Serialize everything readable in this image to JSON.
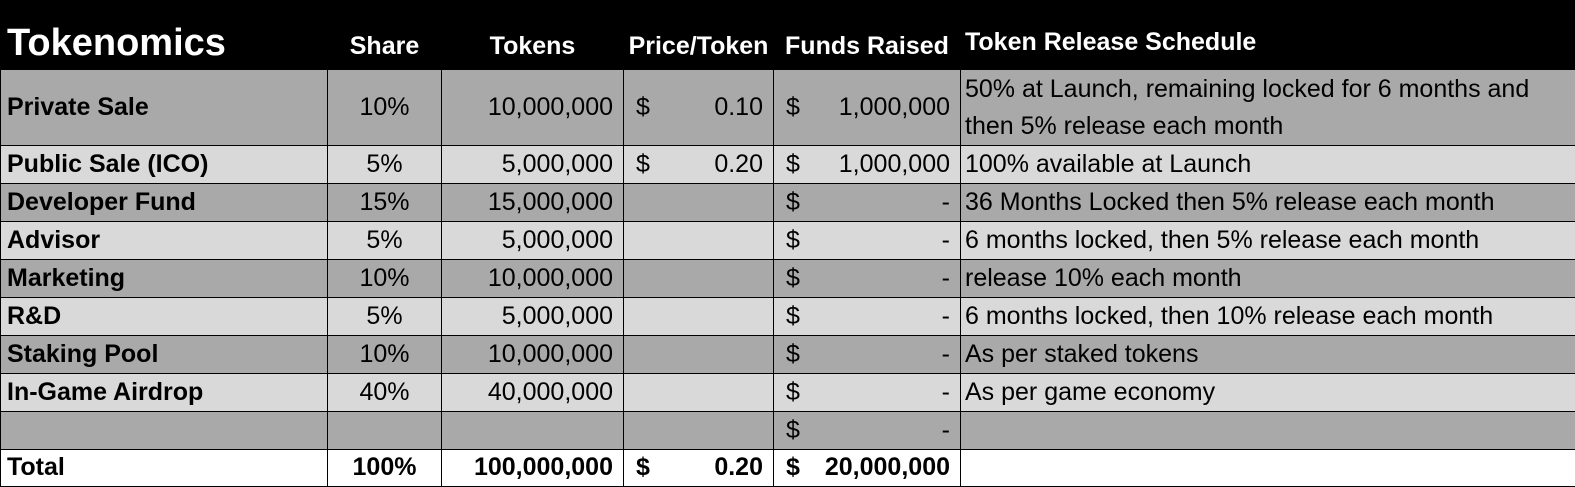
{
  "header": {
    "title": "Tokenomics",
    "share": "Share",
    "tokens": "Tokens",
    "price": "Price/Token",
    "funds": "Funds Raised",
    "schedule": "Token Release Schedule"
  },
  "currency_symbol": "$",
  "rows": [
    {
      "category": "Private Sale",
      "share": "10%",
      "tokens": "10,000,000",
      "price_symbol": "$",
      "price": "0.10",
      "funds_symbol": "$",
      "funds": "1,000,000",
      "schedule": "50% at Launch, remaining locked for 6 months and then 5% release each month"
    },
    {
      "category": "Public Sale (ICO)",
      "share": "5%",
      "tokens": "5,000,000",
      "price_symbol": "$",
      "price": "0.20",
      "funds_symbol": "$",
      "funds": "1,000,000",
      "schedule": "100% available at Launch"
    },
    {
      "category": "Developer Fund",
      "share": "15%",
      "tokens": "15,000,000",
      "price_symbol": "",
      "price": "",
      "funds_symbol": "$",
      "funds": "-",
      "schedule": "36 Months Locked then 5% release each month"
    },
    {
      "category": "Advisor",
      "share": "5%",
      "tokens": "5,000,000",
      "price_symbol": "",
      "price": "",
      "funds_symbol": "$",
      "funds": "-",
      "schedule": "6 months locked, then 5% release each month"
    },
    {
      "category": "Marketing",
      "share": "10%",
      "tokens": "10,000,000",
      "price_symbol": "",
      "price": "",
      "funds_symbol": "$",
      "funds": "-",
      "schedule": "release 10% each month"
    },
    {
      "category": "R&D",
      "share": "5%",
      "tokens": "5,000,000",
      "price_symbol": "",
      "price": "",
      "funds_symbol": "$",
      "funds": "-",
      "schedule": "6 months locked, then 10% release each month"
    },
    {
      "category": "Staking Pool",
      "share": "10%",
      "tokens": "10,000,000",
      "price_symbol": "",
      "price": "",
      "funds_symbol": "$",
      "funds": "-",
      "schedule": "As per staked tokens"
    },
    {
      "category": "In-Game Airdrop",
      "share": "40%",
      "tokens": "40,000,000",
      "price_symbol": "",
      "price": "",
      "funds_symbol": "$",
      "funds": "-",
      "schedule": "As per game economy"
    },
    {
      "category": "",
      "share": "",
      "tokens": "",
      "price_symbol": "",
      "price": "",
      "funds_symbol": "$",
      "funds": "-",
      "schedule": ""
    }
  ],
  "total": {
    "category": "Total",
    "share": "100%",
    "tokens": "100,000,000",
    "price_symbol": "$",
    "price": "0.20",
    "funds_symbol": "$",
    "funds": "20,000,000",
    "schedule": ""
  }
}
